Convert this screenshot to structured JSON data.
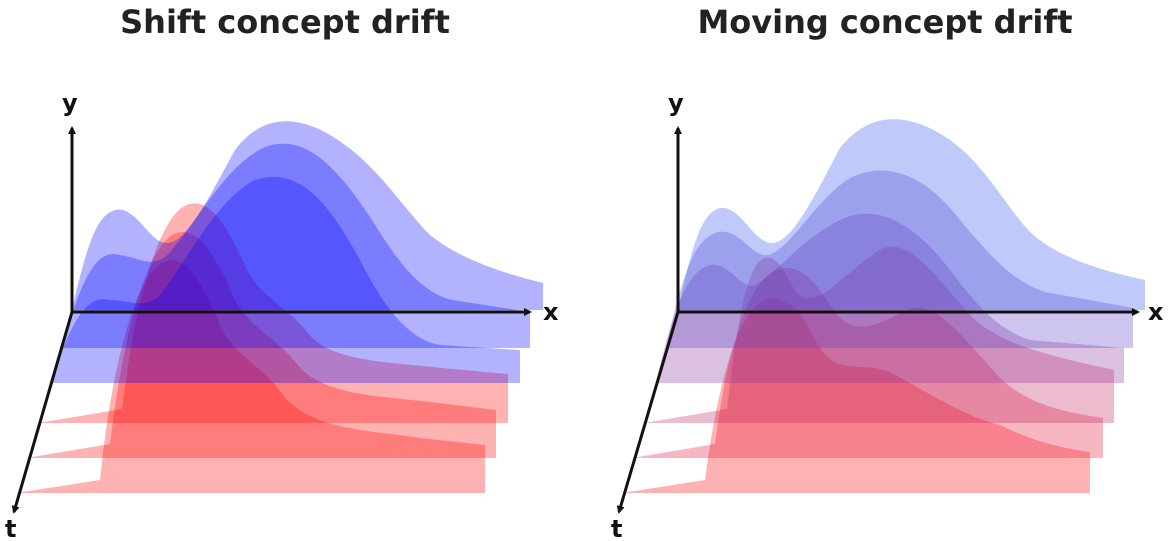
{
  "panels": [
    {
      "title": "Shift concept drift",
      "axes": {
        "y": "y",
        "x": "x",
        "t": "t"
      },
      "layer_colors": [
        "#ff0000",
        "#ff0000",
        "#ff0000",
        "#0000ff",
        "#0000ff",
        "#0000ff"
      ],
      "layer_opacity": [
        0.3,
        0.3,
        0.3,
        0.3,
        0.3,
        0.3
      ]
    },
    {
      "title": "Moving concept drift",
      "axes": {
        "y": "y",
        "x": "x",
        "t": "t"
      },
      "layer_colors": [
        "#ff0000",
        "#e31034",
        "#c01f5a",
        "#8a2f9b",
        "#5a3fc8",
        "#2b4ff0"
      ],
      "layer_opacity": [
        0.3,
        0.3,
        0.3,
        0.3,
        0.3,
        0.3
      ]
    }
  ]
}
